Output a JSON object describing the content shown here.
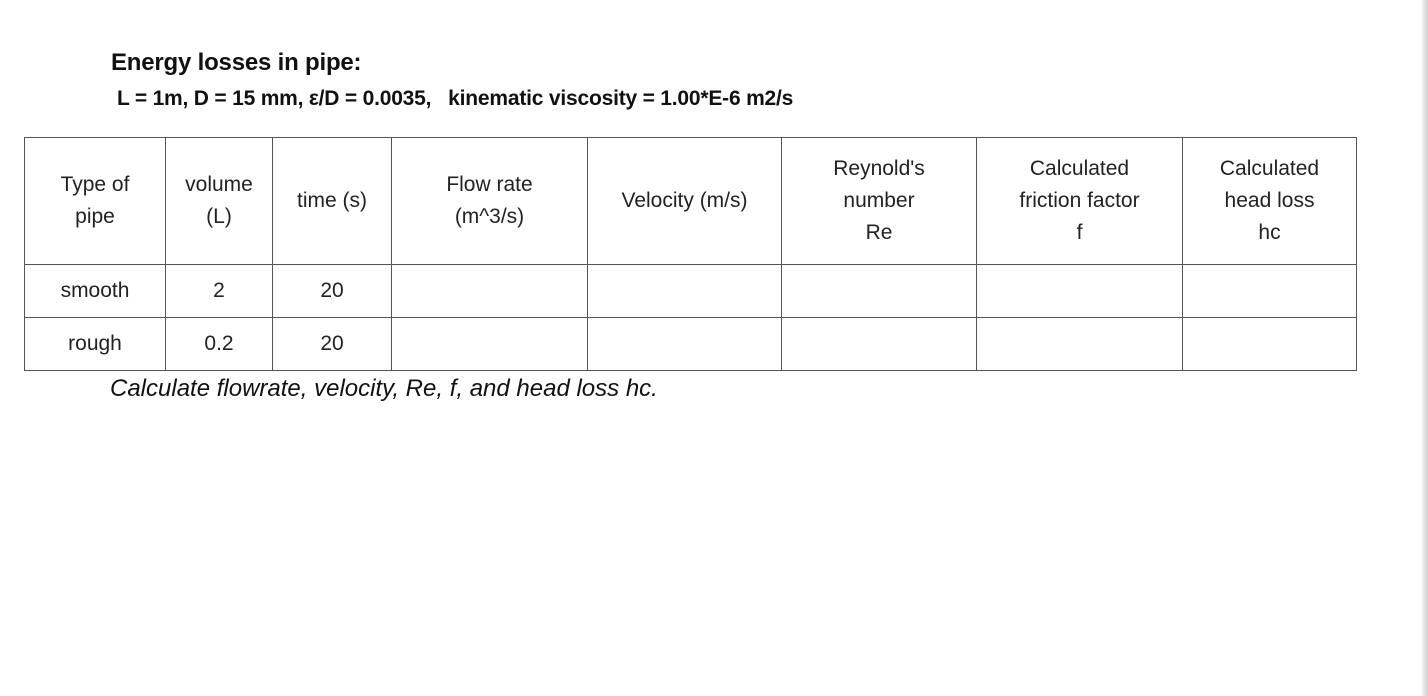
{
  "title": "Energy losses in pipe:",
  "parameters": "L = 1m, D = 15 mm, ε/D = 0.0035,   kinematic viscosity = 1.00*E-6 m2/s",
  "table": {
    "headers": [
      [
        "Type of",
        "pipe"
      ],
      [
        "volume",
        "(L)"
      ],
      [
        "time (s)"
      ],
      [
        "Flow rate",
        "(m^3/s)"
      ],
      [
        "Velocity (m/s)"
      ],
      [
        "Reynold's",
        "number",
        "Re"
      ],
      [
        "Calculated",
        "friction factor",
        "f"
      ],
      [
        "Calculated",
        "head loss",
        "hc"
      ]
    ],
    "rows": [
      [
        "smooth",
        "2",
        "20",
        "",
        "",
        "",
        "",
        ""
      ],
      [
        "rough",
        "0.2",
        "20",
        "",
        "",
        "",
        "",
        ""
      ]
    ]
  },
  "note": "Calculate flowrate, velocity, Re, f, and head loss hc."
}
